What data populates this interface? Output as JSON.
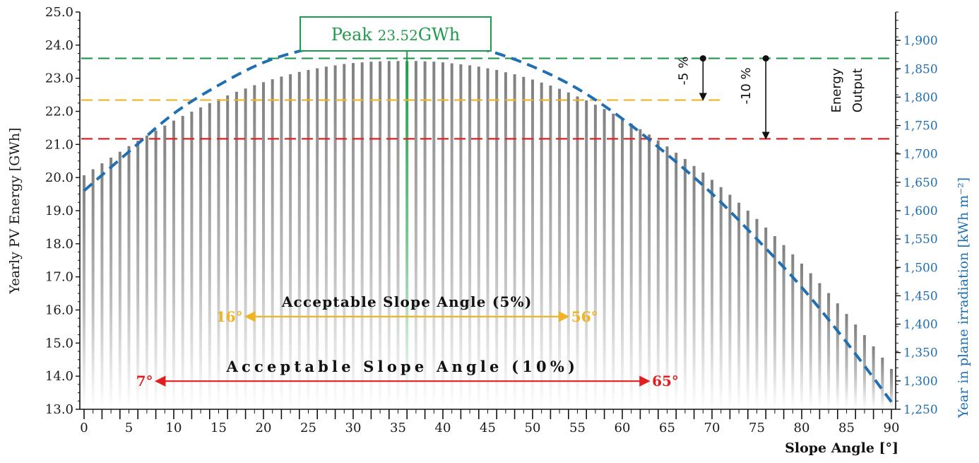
{
  "chart_data": {
    "type": "bar",
    "title": "",
    "xlabel": "Slope Angle [°]",
    "ylabel": "Yearly PV Energy [GWh]",
    "y2label": "Year in plane irradiation [kWh m⁻²]",
    "xlim": [
      0,
      90
    ],
    "ylim": [
      13.0,
      25.0
    ],
    "y2lim": [
      1250,
      1950
    ],
    "x_ticks": [
      0,
      5,
      10,
      15,
      20,
      25,
      30,
      35,
      40,
      45,
      50,
      55,
      60,
      65,
      70,
      75,
      80,
      85,
      90
    ],
    "y_ticks": [
      "13.0",
      "14.0",
      "15.0",
      "16.0",
      "17.0",
      "18.0",
      "19.0",
      "20.0",
      "21.0",
      "22.0",
      "23.0",
      "24.0",
      "25.0"
    ],
    "y2_ticks": [
      "1,250",
      "1,300",
      "1,350",
      "1,400",
      "1,450",
      "1,500",
      "1,550",
      "1,600",
      "1,650",
      "1,700",
      "1,750",
      "1,800",
      "1,850",
      "1,900"
    ],
    "series": [
      {
        "name": "",
        "kind": "bar",
        "axis": "left",
        "color": "#808080",
        "x": [
          0,
          1,
          2,
          3,
          4,
          5,
          6,
          7,
          8,
          9,
          10,
          11,
          12,
          13,
          14,
          15,
          16,
          17,
          18,
          19,
          20,
          21,
          22,
          23,
          24,
          25,
          26,
          27,
          28,
          29,
          30,
          31,
          32,
          33,
          34,
          35,
          36,
          37,
          38,
          39,
          40,
          41,
          42,
          43,
          44,
          45,
          46,
          47,
          48,
          49,
          50,
          51,
          52,
          53,
          54,
          55,
          56,
          57,
          58,
          59,
          60,
          61,
          62,
          63,
          64,
          65,
          66,
          67,
          68,
          69,
          70,
          71,
          72,
          73,
          74,
          75,
          76,
          77,
          78,
          79,
          80,
          81,
          82,
          83,
          84,
          85,
          86,
          87,
          88,
          89,
          90
        ],
        "values": [
          20.07,
          20.25,
          20.43,
          20.6,
          20.78,
          20.95,
          21.11,
          21.27,
          21.42,
          21.57,
          21.72,
          21.86,
          21.99,
          22.12,
          22.25,
          22.37,
          22.48,
          22.59,
          22.69,
          22.79,
          22.88,
          22.97,
          23.05,
          23.12,
          23.19,
          23.25,
          23.3,
          23.35,
          23.39,
          23.43,
          23.46,
          23.48,
          23.5,
          23.51,
          23.52,
          23.52,
          23.52,
          23.52,
          23.51,
          23.5,
          23.48,
          23.45,
          23.42,
          23.39,
          23.35,
          23.3,
          23.25,
          23.18,
          23.12,
          23.04,
          22.96,
          22.87,
          22.78,
          22.68,
          22.57,
          22.45,
          22.33,
          22.2,
          22.07,
          21.93,
          21.78,
          21.63,
          21.46,
          21.3,
          21.12,
          20.94,
          20.75,
          20.56,
          20.35,
          20.15,
          19.93,
          19.71,
          19.48,
          19.24,
          19.0,
          18.75,
          18.49,
          18.23,
          17.96,
          17.68,
          17.4,
          17.11,
          16.81,
          16.51,
          16.2,
          15.88,
          15.56,
          15.24,
          14.9,
          14.56,
          14.22
        ]
      },
      {
        "name": "",
        "kind": "dashed-line",
        "axis": "right",
        "color": "#1f6fb2",
        "x": [
          0,
          5,
          10,
          15,
          20,
          25,
          30,
          35,
          40,
          45,
          50,
          55,
          60,
          65,
          70,
          75,
          80,
          85,
          90
        ],
        "values": [
          1635,
          1704,
          1771,
          1821,
          1861,
          1885,
          1899,
          1902,
          1899,
          1882,
          1854,
          1815,
          1762,
          1699,
          1630,
          1550,
          1465,
          1368,
          1263
        ]
      }
    ],
    "reference_lines": [
      {
        "y": 23.6,
        "color": "#1e9b4a",
        "x_end": 90
      },
      {
        "y": 22.34,
        "color": "#f0b323",
        "x_end": 71
      },
      {
        "y": 21.17,
        "color": "#e02020",
        "x_end": 90
      }
    ],
    "peak": {
      "x": 36,
      "color": "#1e9b4a",
      "label": "Peak",
      "value": "23.52",
      "unit": "GWh"
    },
    "drops": [
      {
        "label": "-5 %",
        "x": 69,
        "from": 23.6,
        "to": 22.34
      },
      {
        "label": "-10 %",
        "x": 76,
        "from": 23.6,
        "to": 21.17
      }
    ],
    "energy_output_label": [
      "Energy",
      "Output"
    ],
    "ranges": [
      {
        "title": "Acceptable Slope Angle (5%)",
        "start": 18,
        "end": 54,
        "y": 15.8,
        "color": "#f0b323",
        "start_label": "16°",
        "end_label": "56°"
      },
      {
        "title": "Acceptable Slope Angle (10%)",
        "start": 8,
        "end": 63,
        "y": 13.85,
        "color": "#e02020",
        "start_label": "7°",
        "end_label": "65°"
      }
    ]
  }
}
